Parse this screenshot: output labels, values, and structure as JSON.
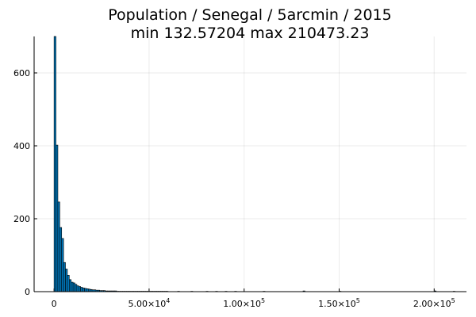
{
  "chart_data": {
    "type": "bar",
    "title_line1": "Population / Senegal / 5arcmin / 2015",
    "title_line2": "min 132.57204  max 210473.23",
    "xlabel": "",
    "ylabel": "",
    "xlim": [
      -10500,
      217000
    ],
    "ylim": [
      0,
      700
    ],
    "grid": true,
    "legend": "none",
    "bar_color": "#0075b8",
    "y_ticks": [
      {
        "value": 0,
        "label": "0"
      },
      {
        "value": 200,
        "label": "200"
      },
      {
        "value": 400,
        "label": "400"
      },
      {
        "value": 600,
        "label": "600"
      }
    ],
    "x_ticks": [
      {
        "value": 0,
        "mantissa": "0",
        "exp": ""
      },
      {
        "value": 50000,
        "mantissa": "5.00×10",
        "exp": "4"
      },
      {
        "value": 100000,
        "mantissa": "1.00×10",
        "exp": "5"
      },
      {
        "value": 150000,
        "mantissa": "1.50×10",
        "exp": "5"
      },
      {
        "value": 200000,
        "mantissa": "2.00×10",
        "exp": "5"
      }
    ],
    "bin_width": 1000,
    "bins_start": 0,
    "counts": [
      700,
      402,
      246,
      176,
      146,
      80,
      62,
      45,
      33,
      26,
      24,
      20,
      16,
      14,
      12,
      10,
      9,
      8,
      7,
      6,
      5,
      5,
      4,
      4,
      3,
      3,
      3,
      2,
      2,
      2,
      2,
      2,
      2,
      1,
      1,
      1,
      1,
      1,
      1,
      1,
      1,
      1,
      1,
      1,
      1,
      1,
      1,
      1,
      1,
      1,
      1,
      1,
      1,
      1,
      1,
      1,
      1,
      1,
      1,
      1
    ],
    "outliers": [
      {
        "x": 65000,
        "count": 1
      },
      {
        "x": 72000,
        "count": 1
      },
      {
        "x": 80000,
        "count": 1
      },
      {
        "x": 85000,
        "count": 1
      },
      {
        "x": 90000,
        "count": 1
      },
      {
        "x": 95000,
        "count": 1
      },
      {
        "x": 110000,
        "count": 1
      },
      {
        "x": 131000,
        "count": 2
      },
      {
        "x": 150000,
        "count": 1
      },
      {
        "x": 200000,
        "count": 2
      },
      {
        "x": 210000,
        "count": 1
      }
    ]
  }
}
